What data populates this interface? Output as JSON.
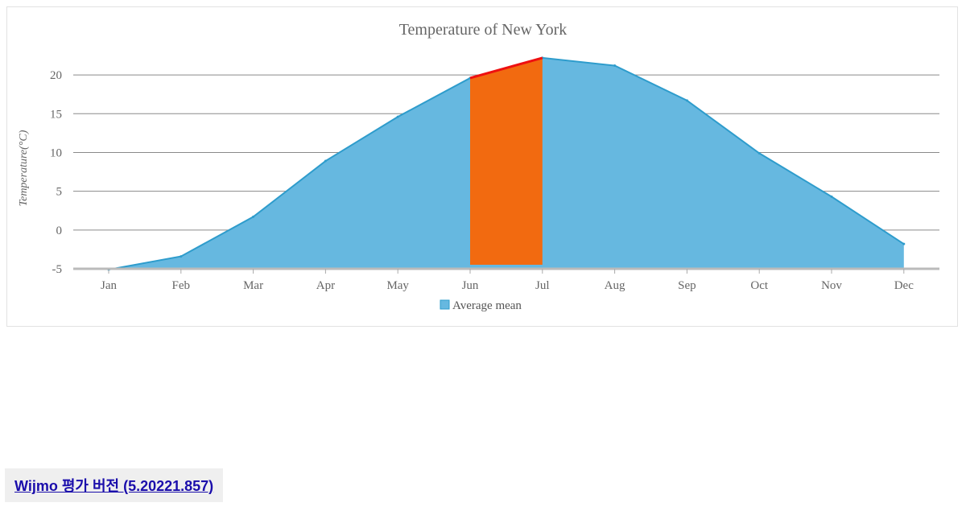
{
  "chart_data": {
    "type": "area",
    "title": "Temperature of New York",
    "xlabel": "",
    "ylabel": "Temperature(°C)",
    "categories": [
      "Jan",
      "Feb",
      "Mar",
      "Apr",
      "May",
      "Jun",
      "Jul",
      "Aug",
      "Sep",
      "Oct",
      "Nov",
      "Dec"
    ],
    "series": [
      {
        "name": "Average mean",
        "values": [
          -5.1,
          -3.4,
          1.7,
          8.9,
          14.6,
          19.6,
          22.2,
          21.2,
          16.7,
          9.9,
          4.3,
          -1.8
        ],
        "color": "#66b8e0",
        "line_color": "#2e9ccc"
      }
    ],
    "highlight": {
      "from": "Jun",
      "to": "Jul",
      "fill_color": "#f26a10",
      "line_color": "#ee1010"
    },
    "ylim": [
      -5,
      22.5
    ],
    "yticks": [
      -5,
      0,
      5,
      10,
      15,
      20
    ],
    "grid": true,
    "legend_position": "bottom"
  },
  "footer": {
    "eval_link": "Wijmo 평가 버전 (5.20221.857)"
  }
}
